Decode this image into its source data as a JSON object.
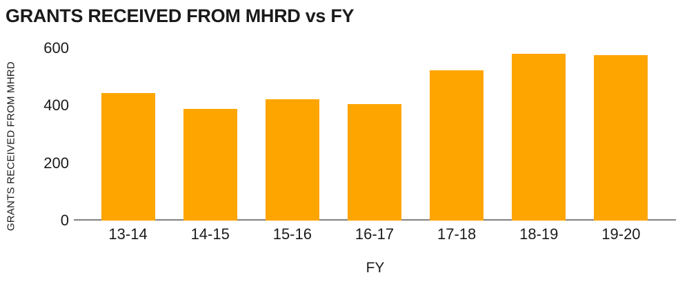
{
  "chart_data": {
    "type": "bar",
    "title": "GRANTS RECEIVED FROM MHRD vs FY",
    "categories": [
      "13-14",
      "14-15",
      "15-16",
      "16-17",
      "17-18",
      "18-19",
      "19-20"
    ],
    "values": [
      444,
      390,
      422,
      406,
      523,
      580,
      575
    ],
    "xlabel": "FY",
    "ylabel": "GRANTS RECEIVED FROM MHRD",
    "ylim": [
      0,
      600
    ],
    "yticks": [
      0,
      200,
      400,
      600
    ],
    "grid": false,
    "legend": false,
    "colors": {
      "bar": "#FFA500",
      "axis_line": "#808080",
      "text": "#1A1A1A",
      "background": "#FFFFFF"
    }
  }
}
